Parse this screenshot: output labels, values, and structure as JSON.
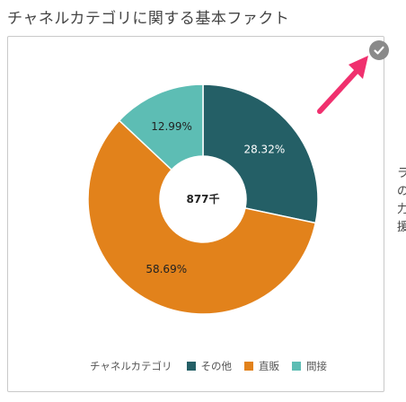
{
  "page": {
    "title": "チャネルカテゴリに関する基本ファクト"
  },
  "chart_data": {
    "type": "pie",
    "center_label": "877千",
    "legend_title": "チャネルカテゴリ",
    "slices": [
      {
        "name": "その他",
        "value": 28.32,
        "label": "28.32%",
        "color": "#245f66"
      },
      {
        "name": "直販",
        "value": 58.69,
        "label": "58.69%",
        "color": "#e2821b"
      },
      {
        "name": "間接",
        "value": 12.99,
        "label": "12.99%",
        "color": "#5dbdb4"
      }
    ]
  },
  "side_text": [
    "ラ",
    "の",
    "力",
    "援"
  ],
  "colors": {
    "badge": "#8a8a8a",
    "arrow": "#f0306e"
  },
  "icons": {
    "badge": "checkmark-icon",
    "annotation": "arrow-icon"
  }
}
